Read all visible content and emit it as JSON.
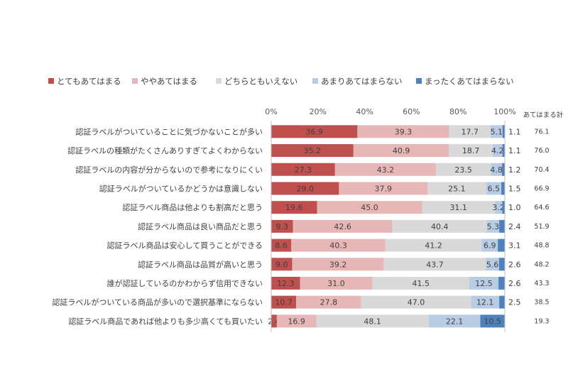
{
  "chart_data": {
    "type": "bar",
    "orientation": "horizontal",
    "stacked": "percent",
    "title": "",
    "legend": {
      "position": "top"
    },
    "xlim": [
      0,
      100
    ],
    "x_ticks": [
      "0%",
      "20%",
      "40%",
      "60%",
      "80%",
      "100%"
    ],
    "total_header": "あてはまる計",
    "categories": [
      "認証ラベルがついていることに気づかないことが多い",
      "認証ラベルの種類がたくさんありすぎてよくわからない",
      "認証ラベルの内容が分からないので参考になりにくい",
      "認証ラベルがついているかどうかは意識しない",
      "認証ラベル商品は他よりも割高だと思う",
      "認証ラベル商品は良い商品だと思う",
      "認証ラベル商品は安心して買うことができる",
      "認証ラベル商品は品質が高いと思う",
      "誰が認証しているのかわからず信用できない",
      "認証ラベルがついている商品が多いので選択基準にならない",
      "認証ラベル商品であれば他よりも多少高くても買いたい"
    ],
    "series": [
      {
        "name": "とてもあてはまる",
        "color": "#c0504d",
        "values": [
          36.9,
          35.2,
          27.3,
          29.0,
          19.6,
          9.3,
          8.6,
          9.0,
          12.3,
          10.7,
          2.4
        ]
      },
      {
        "name": "ややあてはまる",
        "color": "#e6b7b6",
        "values": [
          39.3,
          40.9,
          43.2,
          37.9,
          45.0,
          42.6,
          40.3,
          39.2,
          31.0,
          27.8,
          16.9
        ]
      },
      {
        "name": "どちらともいえない",
        "color": "#d9d9d9",
        "values": [
          17.7,
          18.7,
          23.5,
          25.1,
          31.1,
          40.4,
          41.2,
          43.7,
          41.5,
          47.0,
          48.1
        ]
      },
      {
        "name": "あまりあてはまらない",
        "color": "#b8cce4",
        "values": [
          5.1,
          4.2,
          4.8,
          6.5,
          3.2,
          5.3,
          6.9,
          5.6,
          12.5,
          12.1,
          22.1
        ]
      },
      {
        "name": "まったくあてはまらない",
        "color": "#4f81bd",
        "values": [
          1.1,
          1.1,
          1.2,
          1.5,
          1.0,
          2.4,
          3.1,
          2.6,
          2.6,
          2.5,
          10.5
        ]
      }
    ],
    "totals": [
      76.1,
      76.0,
      70.4,
      66.9,
      64.6,
      51.9,
      48.8,
      48.2,
      43.3,
      38.5,
      19.3
    ]
  }
}
